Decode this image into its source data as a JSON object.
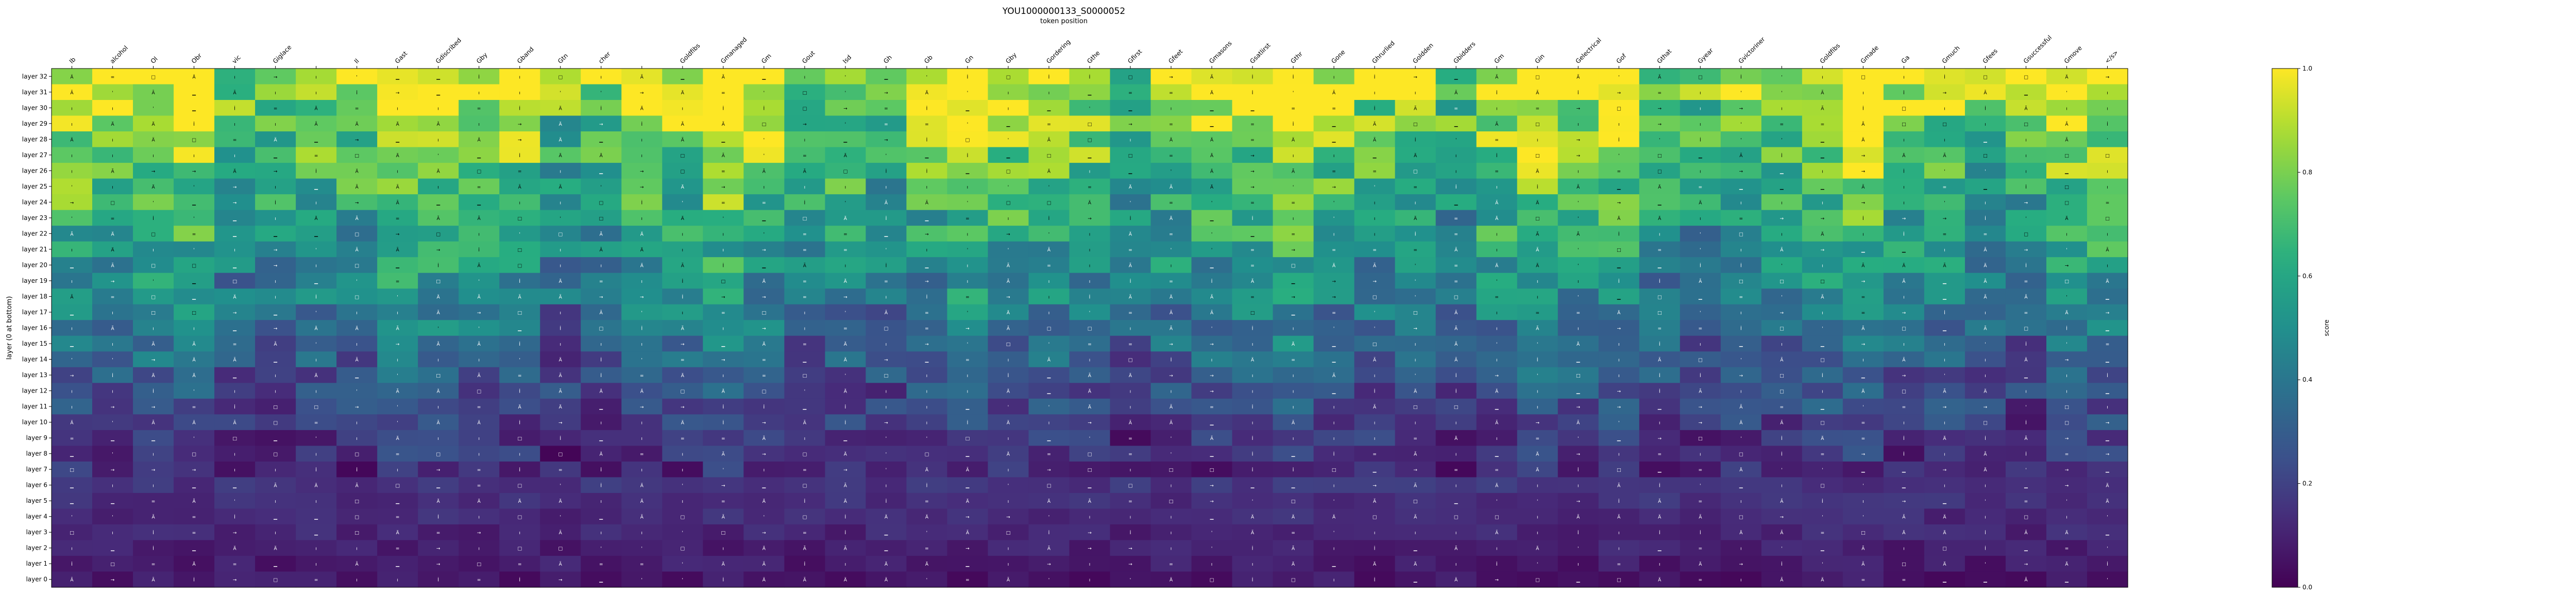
{
  "chart_data": {
    "type": "heatmap",
    "title": "YOU1000000133_S0000052",
    "subtitle": "token position",
    "ylabel": "layer (0 at bottom)",
    "colorbar_label": "score",
    "colormap": "viridis",
    "vmin": 0.0,
    "vmax": 1.0,
    "colorbar_ticks": [
      "0.0",
      "0.2",
      "0.4",
      "0.6",
      "0.8",
      "1.0"
    ],
    "x_tick_labels": [
      "Ib",
      "alcohol",
      "Ol",
      "Obr",
      "vic",
      "Giglace",
      "",
      "Il",
      "Gast",
      "Gdiscribed",
      "Gby",
      "Gband",
      "Gtn",
      "cher",
      "",
      "Goldfibs",
      "Gmanaged",
      "Gm",
      "Gout",
      "Isd",
      "Gh",
      "Gb",
      "Gn",
      "Gby",
      "Gordering",
      "Gthe",
      "Gfirst",
      "Gfeet",
      "Gmasons",
      "Gsatlirst",
      "Gthr",
      "Gone",
      "Ghrurlied",
      "Goldden",
      "Gbidders",
      "Gm",
      "Gin",
      "Gelectrical",
      "Gof",
      "Gthat",
      "Gyear",
      "Gvictoriner",
      "",
      "Goldfibs",
      "Gmade",
      "Ga",
      "Gmuch",
      "Gfees",
      "Gsuccessful",
      "Gmove",
      "</s>"
    ],
    "y_tick_labels": [
      "layer 32",
      "layer 31",
      "layer 30",
      "layer 29",
      "layer 28",
      "layer 27",
      "layer 26",
      "layer 25",
      "layer 24",
      "layer 23",
      "layer 22",
      "layer 21",
      "layer 20",
      "layer 19",
      "layer 18",
      "layer 17",
      "layer 16",
      "layer 15",
      "layer 14",
      "layer 13",
      "layer 12",
      "layer 11",
      "layer 10",
      "layer 9",
      "layer 8",
      "layer 7",
      "layer 6",
      "layer 5",
      "layer 4",
      "layer 3",
      "layer 2",
      "layer 1",
      "layer 0"
    ],
    "cell_text": [
      "→",
      "ı",
      "▁",
      "İ",
      "ı",
      "'",
      "Ä",
      "□",
      "=",
      "Ã"
    ]
  }
}
